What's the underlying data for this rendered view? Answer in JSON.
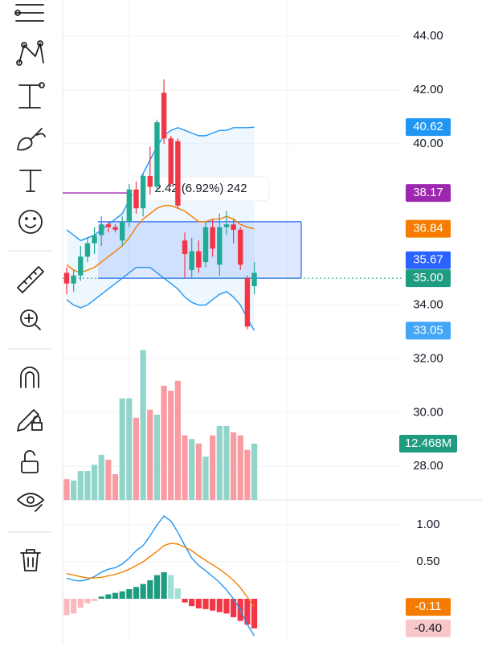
{
  "chart_data": {
    "type": "candlestick",
    "ylim": [
      26.75,
      45.35
    ],
    "yticks": [
      {
        "value": 44,
        "label": "44.00"
      },
      {
        "value": 42,
        "label": "42.00"
      },
      {
        "value": 40,
        "label": "40.00"
      },
      {
        "value": 34,
        "label": "34.00"
      },
      {
        "value": 32,
        "label": "32.00"
      },
      {
        "value": 30,
        "label": "30.00"
      },
      {
        "value": 28,
        "label": "28.00"
      }
    ],
    "up_color": "#22ab94",
    "down_color": "#f23645",
    "candles": [
      [
        35.2,
        35.4,
        34.4,
        34.8
      ],
      [
        34.8,
        35.3,
        34.5,
        35.1
      ],
      [
        35.1,
        36.2,
        34.9,
        35.8
      ],
      [
        35.8,
        36.5,
        35.6,
        36.3
      ],
      [
        36.3,
        36.9,
        35.9,
        36.6
      ],
      [
        36.6,
        37.3,
        36.2,
        37.0
      ],
      [
        37.0,
        37.1,
        36.7,
        36.9
      ],
      [
        36.9,
        37.0,
        36.7,
        36.8
      ],
      [
        36.4,
        37.3,
        36.2,
        37.1
      ],
      [
        37.1,
        38.5,
        36.9,
        38.3
      ],
      [
        38.3,
        38.6,
        37.4,
        37.6
      ],
      [
        37.6,
        38.9,
        37.3,
        38.8
      ],
      [
        38.8,
        39.9,
        38.1,
        38.4
      ],
      [
        38.4,
        40.9,
        38.2,
        40.8
      ],
      [
        41.9,
        42.4,
        40.0,
        40.2
      ],
      [
        40.2,
        40.3,
        38.4,
        38.5
      ],
      [
        40.1,
        40.2,
        37.6,
        37.7
      ],
      [
        36.4,
        36.7,
        35.0,
        35.9
      ],
      [
        35.3,
        36.5,
        35.0,
        36.0
      ],
      [
        36.0,
        36.4,
        35.2,
        35.4
      ],
      [
        35.6,
        37.1,
        35.4,
        36.9
      ],
      [
        36.9,
        37.2,
        35.8,
        36.1
      ],
      [
        35.5,
        37.4,
        35.1,
        36.9
      ],
      [
        36.9,
        37.5,
        36.6,
        37.0
      ],
      [
        37.0,
        37.2,
        36.3,
        36.8
      ],
      [
        36.8,
        36.9,
        35.3,
        35.5
      ],
      [
        35.0,
        35.1,
        33.1,
        33.2
      ],
      [
        34.7,
        35.6,
        34.4,
        35.2
      ]
    ],
    "bands": {
      "upper": [
        36.8,
        36.6,
        36.4,
        36.5,
        36.6,
        36.8,
        37.0,
        37.2,
        37.4,
        37.9,
        38.4,
        38.9,
        39.4,
        39.9,
        40.3,
        40.5,
        40.6,
        40.5,
        40.4,
        40.3,
        40.3,
        40.4,
        40.5,
        40.5,
        40.6,
        40.6,
        40.6,
        40.62
      ],
      "middle": [
        35.5,
        35.3,
        35.2,
        35.3,
        35.4,
        35.6,
        35.8,
        36.0,
        36.2,
        36.5,
        36.9,
        37.2,
        37.4,
        37.6,
        37.7,
        37.7,
        37.6,
        37.5,
        37.3,
        37.1,
        37.1,
        37.2,
        37.2,
        37.3,
        37.2,
        37.0,
        36.9,
        36.84
      ],
      "lower": [
        34.2,
        34.0,
        33.9,
        34.0,
        34.2,
        34.4,
        34.6,
        34.8,
        35.0,
        35.2,
        35.4,
        35.4,
        35.4,
        35.2,
        35.0,
        34.8,
        34.6,
        34.3,
        34.1,
        34.0,
        34.0,
        34.2,
        34.4,
        34.5,
        34.3,
        34.0,
        33.5,
        33.05
      ]
    },
    "position_box": {
      "top": 37.1,
      "bottom": 35.0
    },
    "tooltip": "2.42 (6.92%) 242",
    "price_labels": [
      {
        "value": 40.62,
        "label": "40.62",
        "color": "#2196f3"
      },
      {
        "value": 38.17,
        "label": "38.17",
        "color": "#9c27b0"
      },
      {
        "value": 36.84,
        "label": "36.84",
        "color": "#f57c00"
      },
      {
        "value": 35.67,
        "label": "35.67",
        "color": "#2962ff"
      },
      {
        "value": 35.0,
        "label": "35.00",
        "color": "#1e9c80"
      },
      {
        "value": 33.05,
        "label": "33.05",
        "color": "#42a5f5"
      }
    ],
    "volume": {
      "ylim": [
        0,
        33.3
      ],
      "values": [
        4.6,
        4.3,
        6.4,
        6.4,
        7.8,
        10.0,
        8.9,
        5.7,
        22.5,
        22.5,
        18.2,
        33.2,
        20.0,
        18.9,
        25.3,
        24.2,
        26.4,
        14.3,
        13.5,
        12.5,
        9.6,
        14.3,
        16.4,
        16.4,
        15.0,
        14.3,
        11.1,
        12.468
      ],
      "last_label": "12.468M",
      "color": "#1e9c80"
    },
    "macd": {
      "ylim": [
        -0.598,
        1.337
      ],
      "yticks": [
        {
          "value": 1,
          "label": "1.00"
        },
        {
          "value": 0.5,
          "label": "0.50"
        }
      ],
      "macd": [
        0.28,
        0.25,
        0.24,
        0.26,
        0.3,
        0.36,
        0.4,
        0.42,
        0.47,
        0.55,
        0.65,
        0.72,
        0.85,
        1.0,
        1.12,
        1.05,
        0.9,
        0.72,
        0.55,
        0.45,
        0.38,
        0.3,
        0.22,
        0.12,
        0.0,
        -0.15,
        -0.35,
        -0.5
      ],
      "signal": [
        0.34,
        0.32,
        0.3,
        0.28,
        0.28,
        0.29,
        0.31,
        0.33,
        0.36,
        0.4,
        0.45,
        0.5,
        0.57,
        0.64,
        0.72,
        0.75,
        0.74,
        0.7,
        0.65,
        0.58,
        0.52,
        0.46,
        0.4,
        0.33,
        0.25,
        0.15,
        0.02,
        -0.11
      ],
      "histogram": [
        -0.22,
        -0.2,
        -0.12,
        -0.06,
        -0.03,
        0.03,
        0.06,
        0.08,
        0.1,
        0.13,
        0.16,
        0.2,
        0.25,
        0.32,
        0.36,
        0.32,
        0.14,
        -0.05,
        -0.1,
        -0.13,
        -0.14,
        -0.16,
        -0.18,
        -0.2,
        -0.25,
        -0.3,
        -0.35,
        -0.4
      ],
      "macd_color": "#2196f3",
      "signal_color": "#f57c00",
      "badges": [
        {
          "value": -0.11,
          "label": "-0.11",
          "color": "#f57c00"
        },
        {
          "value": -0.4,
          "label": "-0.40",
          "color": "#f8c8c8"
        }
      ]
    }
  }
}
